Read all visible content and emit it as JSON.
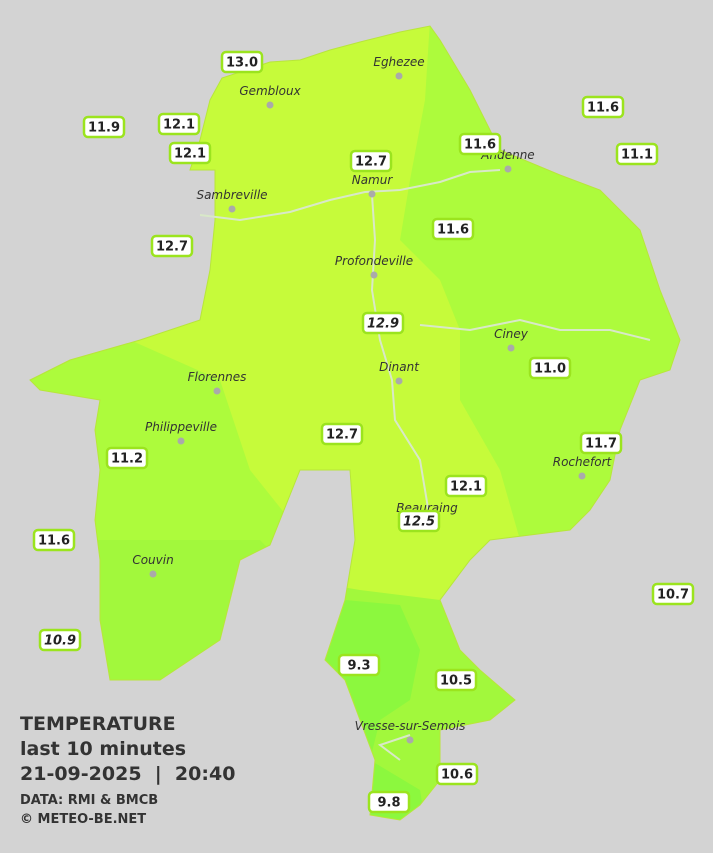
{
  "legend": {
    "title": "TEMPERATURE",
    "subtitle": "last 10 minutes",
    "datetime": "21-09-2025  |  20:40",
    "source": "DATA: RMI & BMCB",
    "credit": "© METEO-BE.NET"
  },
  "cities": [
    "Eghezee",
    "Gembloux",
    "Andenne",
    "Namur",
    "Sambreville",
    "Profondeville",
    "Ciney",
    "Florennes",
    "Dinant",
    "Philippeville",
    "Rochefort",
    "Beauraing",
    "Couvin",
    "Vresse-sur-Semois"
  ],
  "stations": [
    {
      "label": "13.0"
    },
    {
      "label": "11.9"
    },
    {
      "label": "12.1"
    },
    {
      "label": "12.1"
    },
    {
      "label": "12.7"
    },
    {
      "label": "11.6"
    },
    {
      "label": "11.6"
    },
    {
      "label": "11.1"
    },
    {
      "label": "12.7"
    },
    {
      "label": "11.6"
    },
    {
      "label": "12.9",
      "style": "italic"
    },
    {
      "label": "11.0"
    },
    {
      "label": "12.7"
    },
    {
      "label": "11.2"
    },
    {
      "label": "11.7"
    },
    {
      "label": "12.1"
    },
    {
      "label": "12.5",
      "style": "italic"
    },
    {
      "label": "11.6"
    },
    {
      "label": "10.7"
    },
    {
      "label": "10.9",
      "style": "italic"
    },
    {
      "label": "9.3"
    },
    {
      "label": "10.5"
    },
    {
      "label": "10.6"
    },
    {
      "label": "9.8"
    }
  ]
}
